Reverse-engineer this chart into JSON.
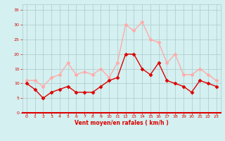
{
  "x": [
    0,
    1,
    2,
    3,
    4,
    5,
    6,
    7,
    8,
    9,
    10,
    11,
    12,
    13,
    14,
    15,
    16,
    17,
    18,
    19,
    20,
    21,
    22,
    23
  ],
  "wind_mean": [
    10,
    8,
    5,
    7,
    8,
    9,
    7,
    7,
    7,
    9,
    11,
    12,
    20,
    20,
    15,
    13,
    17,
    11,
    10,
    9,
    7,
    11,
    10,
    9
  ],
  "wind_gust": [
    11,
    11,
    9,
    12,
    13,
    17,
    13,
    14,
    13,
    15,
    12,
    17,
    30,
    28,
    31,
    25,
    24,
    17,
    20,
    13,
    13,
    15,
    13,
    11
  ],
  "mean_color": "#dd0000",
  "gust_color": "#ffaaaa",
  "bg_color": "#d4f0f0",
  "grid_color": "#b0c8c8",
  "axis_color": "#dd0000",
  "xlabel": "Vent moyen/en rafales ( km/h )",
  "ytick_labels": [
    "0",
    "5",
    "10",
    "15",
    "20",
    "25",
    "30",
    "35"
  ],
  "ytick_values": [
    0,
    5,
    10,
    15,
    20,
    25,
    30,
    35
  ],
  "xtick_values": [
    0,
    1,
    2,
    3,
    4,
    5,
    6,
    7,
    8,
    9,
    10,
    11,
    12,
    13,
    14,
    15,
    16,
    17,
    18,
    19,
    20,
    21,
    22,
    23
  ],
  "ylim": [
    0,
    37
  ],
  "xlim": [
    -0.5,
    23.5
  ],
  "marker": "D",
  "markersize": 2.5,
  "linewidth": 1.0
}
